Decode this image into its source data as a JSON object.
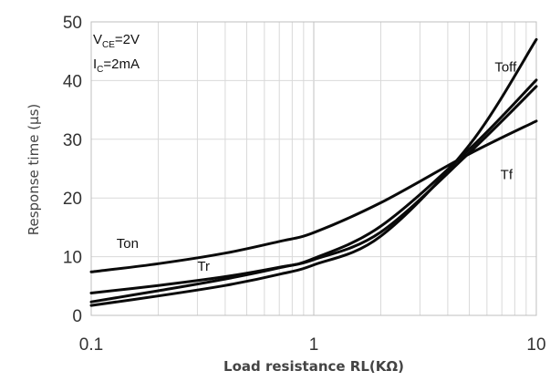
{
  "chart_data": {
    "type": "line",
    "xscale": "log",
    "xlim": [
      0.1,
      10
    ],
    "ylim": [
      0,
      50
    ],
    "xticks": [
      "0.1",
      "1",
      "10"
    ],
    "yticks": [
      "0",
      "10",
      "20",
      "30",
      "40",
      "50"
    ],
    "xlabel": "Load resistance RL(KΩ)",
    "ylabel": "Response time (μs)",
    "grid": true,
    "conditions": [
      {
        "main": "V",
        "sub": "CE",
        "value": "=2V"
      },
      {
        "main": "I",
        "sub": "C",
        "value": "=2mA"
      }
    ],
    "series": [
      {
        "name": "Ton",
        "x": [
          0.1,
          0.2,
          0.4,
          0.7,
          1,
          2,
          5,
          10
        ],
        "y": [
          7.4,
          8.8,
          10.6,
          12.6,
          14.1,
          19.2,
          27.5,
          33.1
        ]
      },
      {
        "name": "Toff",
        "x": [
          0.1,
          0.2,
          0.4,
          0.7,
          1,
          2,
          5,
          10
        ],
        "y": [
          1.7,
          3.3,
          5.1,
          7.0,
          8.6,
          13.5,
          29.0,
          47.0
        ]
      },
      {
        "name": "Tr",
        "x": [
          0.1,
          0.2,
          0.4,
          0.7,
          1,
          2,
          5,
          10
        ],
        "y": [
          2.3,
          4.2,
          6.2,
          8.1,
          9.7,
          15.2,
          28.3,
          40.1
        ]
      },
      {
        "name": "Tf",
        "x": [
          0.1,
          0.2,
          0.4,
          0.7,
          1,
          2,
          5,
          10
        ],
        "y": [
          3.8,
          5.1,
          6.6,
          8.2,
          9.5,
          14.2,
          27.7,
          39.0
        ]
      }
    ],
    "series_labels": [
      {
        "text": "Ton",
        "x": 0.13,
        "y": 11.5
      },
      {
        "text": "Toff",
        "x": 6.5,
        "y": 41.5
      },
      {
        "text": "Tr",
        "x": 0.3,
        "y": 7.6
      },
      {
        "text": "Tf",
        "x": 6.9,
        "y": 23.2
      }
    ]
  }
}
